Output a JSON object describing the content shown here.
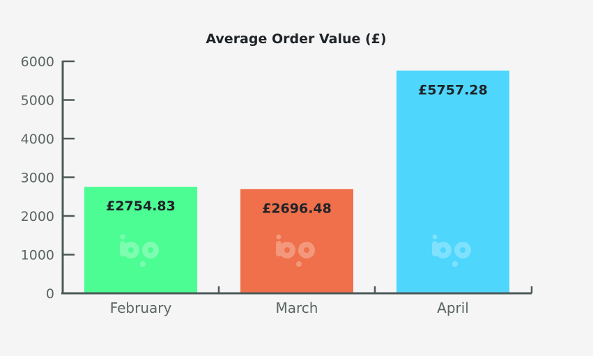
{
  "chart_data": {
    "type": "bar",
    "title": "Average Order Value (£)",
    "xlabel": "",
    "ylabel": "",
    "categories": [
      "February",
      "March",
      "April"
    ],
    "values": [
      2754.83,
      2696.48,
      5757.28
    ],
    "value_labels": [
      "£2754.83",
      "£2696.48",
      "£5757.28"
    ],
    "bar_colors": [
      "#4cfd93",
      "#ef704b",
      "#4ed6fd"
    ],
    "ylim": [
      0,
      6000
    ],
    "yticks": [
      0,
      1000,
      2000,
      3000,
      4000,
      5000,
      6000
    ],
    "ytick_labels": [
      "0",
      "1000",
      "2000",
      "3000",
      "4000",
      "5000",
      "6000"
    ],
    "grid": false,
    "legend": "none",
    "watermark_icon": "bp-logo-icon"
  },
  "colors": {
    "background": "#f4f5f4",
    "axis": "#4d5958",
    "tick_text": "#5a6563",
    "label_text": "#1f2328"
  }
}
